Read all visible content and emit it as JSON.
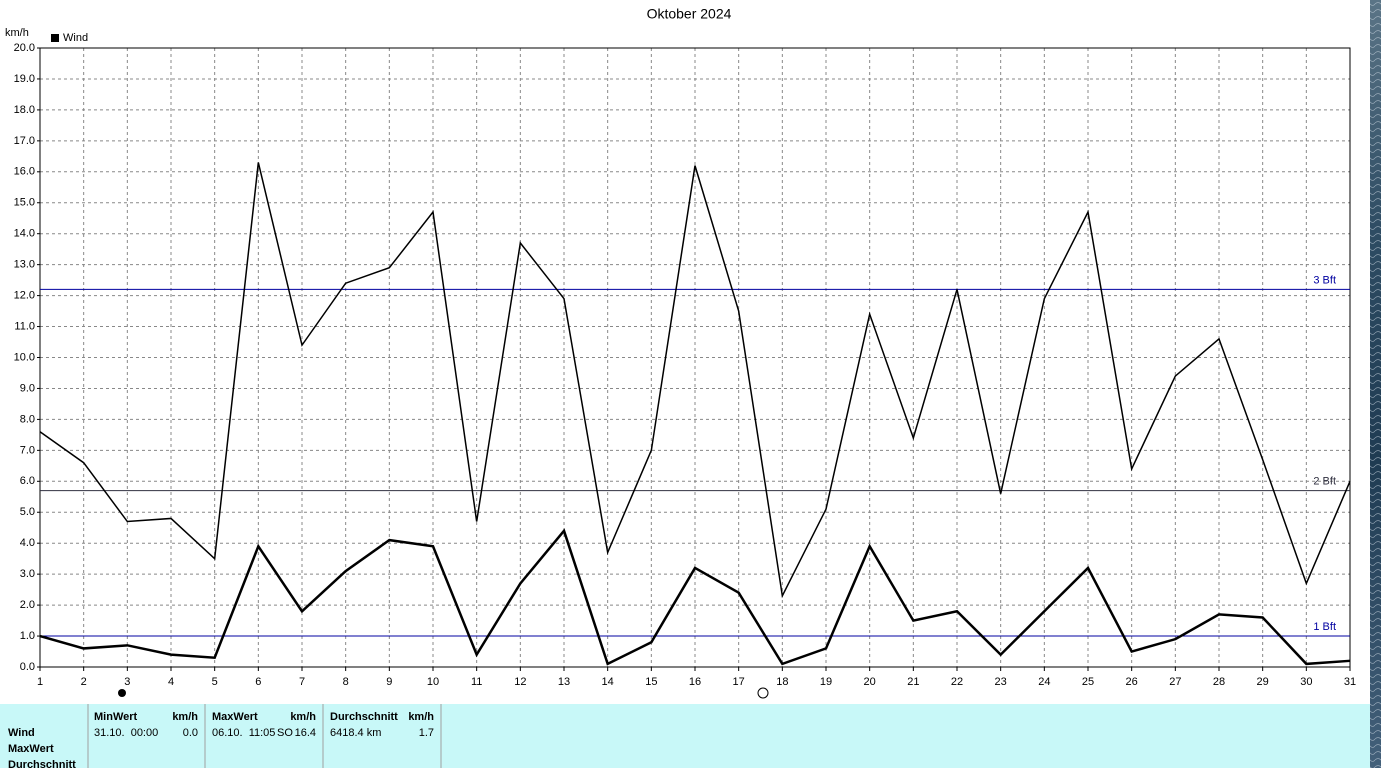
{
  "chart_data": {
    "type": "line",
    "title": "Oktober 2024",
    "y_label": "km/h",
    "legend": "top-left",
    "x": [
      1,
      2,
      3,
      4,
      5,
      6,
      7,
      8,
      9,
      10,
      11,
      12,
      13,
      14,
      15,
      16,
      17,
      18,
      19,
      20,
      21,
      22,
      23,
      24,
      25,
      26,
      27,
      28,
      29,
      30,
      31
    ],
    "xlim": [
      1,
      31
    ],
    "xticks": [
      1,
      2,
      3,
      4,
      5,
      6,
      7,
      8,
      9,
      10,
      11,
      12,
      13,
      14,
      15,
      16,
      17,
      18,
      19,
      20,
      21,
      22,
      23,
      24,
      25,
      26,
      27,
      28,
      29,
      30,
      31
    ],
    "ylim": [
      0,
      20
    ],
    "yticks": [
      {
        "value": 0,
        "label": "0.0"
      },
      {
        "value": 1,
        "label": "1.0"
      },
      {
        "value": 2,
        "label": "2.0"
      },
      {
        "value": 3,
        "label": "3.0"
      },
      {
        "value": 4,
        "label": "4.0"
      },
      {
        "value": 5,
        "label": "5.0"
      },
      {
        "value": 6,
        "label": "6.0"
      },
      {
        "value": 7,
        "label": "7.0"
      },
      {
        "value": 8,
        "label": "8.0"
      },
      {
        "value": 9,
        "label": "9.0"
      },
      {
        "value": 10,
        "label": "10.0"
      },
      {
        "value": 11,
        "label": "11.0"
      },
      {
        "value": 12,
        "label": "12.0"
      },
      {
        "value": 13,
        "label": "13.0"
      },
      {
        "value": 14,
        "label": "14.0"
      },
      {
        "value": 15,
        "label": "15.0"
      },
      {
        "value": 16,
        "label": "16.0"
      },
      {
        "value": 17,
        "label": "17.0"
      },
      {
        "value": 18,
        "label": "18.0"
      },
      {
        "value": 19,
        "label": "19.0"
      },
      {
        "value": 20,
        "label": "20.0"
      }
    ],
    "grid": true,
    "series": [
      {
        "name": "Wind",
        "color": "#000000",
        "line_width": 2.5,
        "values": [
          1.0,
          0.6,
          0.7,
          0.4,
          0.3,
          3.9,
          1.8,
          3.1,
          4.1,
          3.9,
          0.4,
          2.7,
          4.4,
          0.1,
          0.8,
          3.2,
          2.4,
          0.1,
          0.6,
          3.9,
          1.5,
          1.8,
          0.4,
          1.8,
          3.2,
          0.5,
          0.9,
          1.7,
          1.6,
          0.1,
          0.2
        ]
      },
      {
        "color": "#000000",
        "line_width": 1.5,
        "values": [
          7.6,
          6.6,
          4.7,
          4.8,
          3.5,
          16.3,
          10.4,
          12.4,
          12.9,
          14.7,
          4.7,
          13.7,
          11.9,
          3.7,
          7.0,
          16.2,
          11.5,
          2.3,
          5.1,
          11.4,
          7.4,
          12.2,
          5.6,
          11.9,
          14.7,
          6.4,
          9.4,
          10.6,
          6.7,
          2.7,
          6.0
        ]
      }
    ],
    "reference_lines": [
      {
        "value": 1.0,
        "label": "1 Bft",
        "color": "#0000a0"
      },
      {
        "value": 5.7,
        "label": "2 Bft",
        "color": "#303040"
      },
      {
        "value": 12.2,
        "label": "3 Bft",
        "color": "#0000a0"
      }
    ]
  },
  "table": {
    "row_labels": [
      "Wind",
      "MaxWert",
      "Durchschnitt"
    ],
    "columns": [
      {
        "header": "MinWert",
        "unit": "km/h"
      },
      {
        "header": "MaxWert",
        "unit": "km/h"
      },
      {
        "header": "Durchschnitt",
        "unit": "km/h"
      }
    ],
    "rows": [
      [
        "31.10.  00:00",
        "0.0",
        "06.10.  11:05",
        "SO",
        "16.4",
        "6418.4 km",
        "1.7"
      ]
    ]
  }
}
